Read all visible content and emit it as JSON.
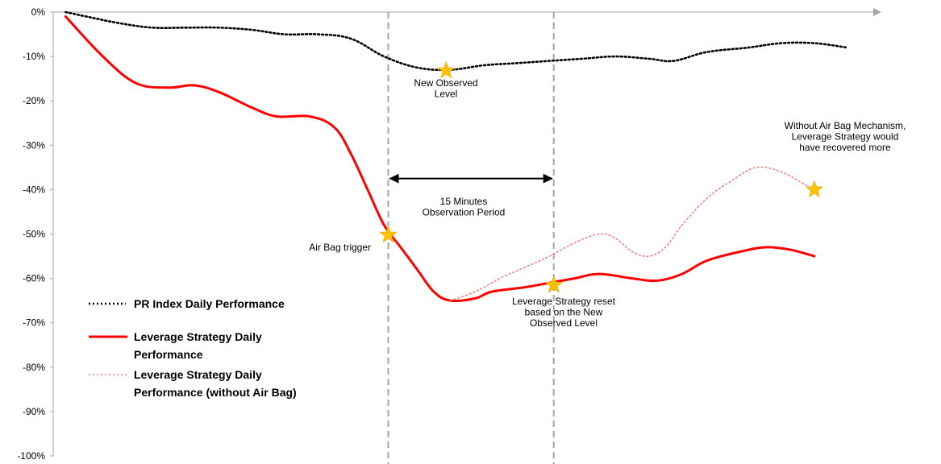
{
  "chart_data": {
    "type": "line",
    "y_ticks": [
      "0%",
      "-10%",
      "-20%",
      "-30%",
      "-40%",
      "-50%",
      "-60%",
      "-70%",
      "-80%",
      "-90%",
      "-100%"
    ],
    "ylim": [
      -100,
      0
    ],
    "xlim": [
      0,
      100
    ],
    "grid": false,
    "legend_position": "bottom-left",
    "series": [
      {
        "name": "PR Index Daily Performance",
        "color": "#000000",
        "style": "dotted",
        "points": [
          [
            1.5,
            0
          ],
          [
            4,
            -1
          ],
          [
            8,
            -2.5
          ],
          [
            12,
            -3.5
          ],
          [
            16,
            -3.5
          ],
          [
            20,
            -3.5
          ],
          [
            24,
            -4
          ],
          [
            28,
            -5
          ],
          [
            32,
            -5
          ],
          [
            36,
            -6
          ],
          [
            40,
            -10
          ],
          [
            44,
            -12.5
          ],
          [
            48,
            -13
          ],
          [
            52,
            -12
          ],
          [
            56,
            -11.5
          ],
          [
            60,
            -11
          ],
          [
            64,
            -10.5
          ],
          [
            68,
            -10
          ],
          [
            72,
            -10.5
          ],
          [
            75,
            -11
          ],
          [
            79,
            -9
          ],
          [
            84,
            -8
          ],
          [
            88,
            -7
          ],
          [
            92,
            -7
          ],
          [
            96,
            -8
          ]
        ]
      },
      {
        "name": "Leverage Strategy Daily Performance",
        "color": "#ff0000",
        "style": "solid",
        "points": [
          [
            1.5,
            -1
          ],
          [
            6,
            -10
          ],
          [
            10,
            -16
          ],
          [
            14,
            -17
          ],
          [
            17,
            -16.5
          ],
          [
            20,
            -18
          ],
          [
            24,
            -21.5
          ],
          [
            27,
            -23.5
          ],
          [
            31,
            -23.5
          ],
          [
            34,
            -26
          ],
          [
            36,
            -32
          ],
          [
            38,
            -40
          ],
          [
            40,
            -48
          ],
          [
            42,
            -53
          ],
          [
            44,
            -58
          ],
          [
            46,
            -63
          ],
          [
            48,
            -65
          ],
          [
            51,
            -64.5
          ],
          [
            53,
            -63
          ],
          [
            57,
            -62
          ],
          [
            60,
            -61
          ],
          [
            63,
            -60
          ],
          [
            66,
            -59
          ],
          [
            70,
            -60
          ],
          [
            73,
            -60.5
          ],
          [
            76,
            -59
          ],
          [
            79,
            -56
          ],
          [
            83,
            -54
          ],
          [
            86,
            -53
          ],
          [
            89,
            -53.5
          ],
          [
            92,
            -55
          ]
        ]
      },
      {
        "name": "Leverage Strategy Daily Performance (without Air Bag)",
        "color": "#f07878",
        "style": "dotted",
        "points": [
          [
            48,
            -65
          ],
          [
            51,
            -63
          ],
          [
            54,
            -60
          ],
          [
            57,
            -57.5
          ],
          [
            60,
            -55
          ],
          [
            63,
            -52
          ],
          [
            66,
            -50
          ],
          [
            68,
            -51
          ],
          [
            70,
            -54
          ],
          [
            72,
            -55
          ],
          [
            74,
            -53
          ],
          [
            76,
            -48
          ],
          [
            79,
            -42
          ],
          [
            82,
            -38
          ],
          [
            85,
            -35
          ],
          [
            88,
            -36
          ],
          [
            91,
            -39
          ],
          [
            92,
            -40
          ]
        ]
      }
    ],
    "dashed_verticals_x": [
      40.5,
      60.5
    ],
    "observation_arrow": {
      "x_from": 40.5,
      "x_to": 60.5,
      "y": -37.5
    },
    "star_color": "#ffc000",
    "stars": [
      {
        "x": 47.5,
        "y": -13.2
      },
      {
        "x": 40.5,
        "y": -50.2
      },
      {
        "x": 60.5,
        "y": -61.5
      },
      {
        "x": 92,
        "y": -40
      }
    ],
    "annotations": [
      {
        "lines": [
          "New Observed",
          "Level"
        ]
      },
      {
        "lines": [
          "15 Minutes",
          "Observation Period"
        ]
      },
      {
        "lines": [
          "Air Bag trigger"
        ]
      },
      {
        "lines": [
          "Leverage Strategy reset",
          "based on the New",
          "Observed Level"
        ]
      },
      {
        "lines": [
          "Without Air Bag Mechanism,",
          "Leverage Strategy would",
          "have recovered more"
        ]
      }
    ],
    "legend": [
      {
        "lines": [
          "PR Index Daily Performance"
        ]
      },
      {
        "lines": [
          "Leverage Strategy Daily",
          "Performance"
        ]
      },
      {
        "lines": [
          "Leverage Strategy Daily",
          "Performance (without Air Bag)"
        ]
      }
    ]
  }
}
